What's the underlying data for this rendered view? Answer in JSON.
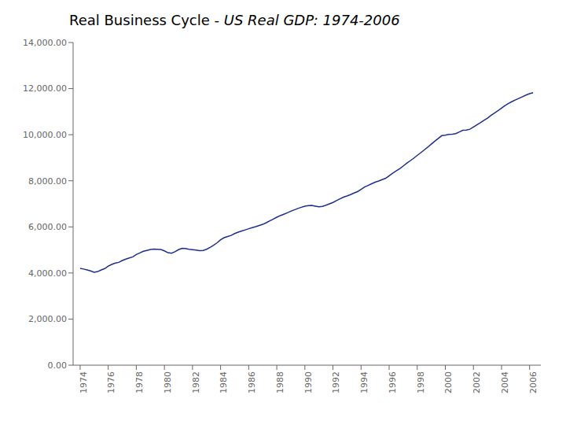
{
  "chart_data": {
    "type": "line",
    "title": "Real Business Cycle - ",
    "subtitle": "US Real GDP: 1974-2006",
    "color": "#1f2f8c",
    "grid": false,
    "xlim": [
      1973.5,
      2006.8
    ],
    "xticks": [
      1974,
      1976,
      1978,
      1980,
      1982,
      1984,
      1986,
      1988,
      1990,
      1992,
      1994,
      1996,
      1998,
      2000,
      2002,
      2004,
      2006
    ],
    "ylim": [
      0,
      14000
    ],
    "yticks": [
      {
        "value": 0,
        "label": "0.00"
      },
      {
        "value": 2000,
        "label": "2,000.00"
      },
      {
        "value": 4000,
        "label": "4,000.00"
      },
      {
        "value": 6000,
        "label": "6,000.00"
      },
      {
        "value": 8000,
        "label": "8,000.00"
      },
      {
        "value": 10000,
        "label": "10,000.00"
      },
      {
        "value": 12000,
        "label": "12,000.00"
      },
      {
        "value": 14000,
        "label": "14,000.00"
      }
    ],
    "x": [
      1974.0,
      1974.25,
      1974.5,
      1974.75,
      1975.0,
      1975.25,
      1975.5,
      1975.75,
      1976.0,
      1976.25,
      1976.5,
      1976.75,
      1977.0,
      1977.25,
      1977.5,
      1977.75,
      1978.0,
      1978.25,
      1978.5,
      1978.75,
      1979.0,
      1979.25,
      1979.5,
      1979.75,
      1980.0,
      1980.25,
      1980.5,
      1980.75,
      1981.0,
      1981.25,
      1981.5,
      1981.75,
      1982.0,
      1982.25,
      1982.5,
      1982.75,
      1983.0,
      1983.25,
      1983.5,
      1983.75,
      1984.0,
      1984.25,
      1984.5,
      1984.75,
      1985.0,
      1985.25,
      1985.5,
      1985.75,
      1986.0,
      1986.25,
      1986.5,
      1986.75,
      1987.0,
      1987.25,
      1987.5,
      1987.75,
      1988.0,
      1988.25,
      1988.5,
      1988.75,
      1989.0,
      1989.25,
      1989.5,
      1989.75,
      1990.0,
      1990.25,
      1990.5,
      1990.75,
      1991.0,
      1991.25,
      1991.5,
      1991.75,
      1992.0,
      1992.25,
      1992.5,
      1992.75,
      1993.0,
      1993.25,
      1993.5,
      1993.75,
      1994.0,
      1994.25,
      1994.5,
      1994.75,
      1995.0,
      1995.25,
      1995.5,
      1995.75,
      1996.0,
      1996.25,
      1996.5,
      1996.75,
      1997.0,
      1997.25,
      1997.5,
      1997.75,
      1998.0,
      1998.25,
      1998.5,
      1998.75,
      1999.0,
      1999.25,
      1999.5,
      1999.75,
      2000.0,
      2000.25,
      2000.5,
      2000.75,
      2001.0,
      2001.25,
      2001.5,
      2001.75,
      2002.0,
      2002.25,
      2002.5,
      2002.75,
      2003.0,
      2003.25,
      2003.5,
      2003.75,
      2004.0,
      2004.25,
      2004.5,
      2004.75,
      2005.0,
      2005.25,
      2005.5,
      2005.75,
      2006.0,
      2006.25
    ],
    "values": [
      4200,
      4170,
      4130,
      4090,
      4030,
      4060,
      4130,
      4190,
      4300,
      4370,
      4430,
      4460,
      4540,
      4600,
      4650,
      4700,
      4800,
      4870,
      4940,
      4980,
      5020,
      5040,
      5030,
      5020,
      4960,
      4880,
      4860,
      4920,
      5010,
      5070,
      5060,
      5030,
      5010,
      4990,
      4970,
      4980,
      5030,
      5110,
      5200,
      5310,
      5440,
      5530,
      5580,
      5630,
      5710,
      5770,
      5820,
      5870,
      5920,
      5970,
      6010,
      6060,
      6110,
      6180,
      6260,
      6340,
      6420,
      6490,
      6550,
      6610,
      6680,
      6740,
      6800,
      6850,
      6900,
      6920,
      6930,
      6900,
      6870,
      6890,
      6940,
      7000,
      7060,
      7140,
      7220,
      7290,
      7340,
      7400,
      7470,
      7530,
      7630,
      7730,
      7800,
      7870,
      7940,
      7990,
      8050,
      8110,
      8220,
      8330,
      8430,
      8520,
      8640,
      8760,
      8870,
      8980,
      9100,
      9220,
      9340,
      9460,
      9590,
      9720,
      9840,
      9960,
      9980,
      10010,
      10020,
      10050,
      10120,
      10190,
      10200,
      10240,
      10330,
      10430,
      10520,
      10620,
      10720,
      10840,
      10940,
      11040,
      11150,
      11260,
      11360,
      11440,
      11510,
      11580,
      11650,
      11720,
      11780,
      11820
    ]
  }
}
